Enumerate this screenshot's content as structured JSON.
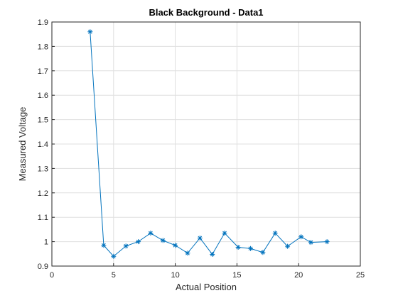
{
  "chart_data": {
    "type": "line",
    "title": "Black Background - Data1",
    "xlabel": "Actual Position",
    "ylabel": "Measured Voltage",
    "xlim": [
      0,
      25
    ],
    "ylim": [
      0.9,
      1.9
    ],
    "xticks": [
      0,
      5,
      10,
      15,
      20,
      25
    ],
    "yticks": [
      0.9,
      1.0,
      1.1,
      1.2,
      1.3,
      1.4,
      1.5,
      1.6,
      1.7,
      1.8,
      1.9
    ],
    "xtick_labels": [
      "0",
      "5",
      "10",
      "15",
      "20",
      "25"
    ],
    "ytick_labels": [
      "0.9",
      "1",
      "1.1",
      "1.2",
      "1.3",
      "1.4",
      "1.5",
      "1.6",
      "1.7",
      "1.8",
      "1.9"
    ],
    "grid": true,
    "marker": "asterisk",
    "series": [
      {
        "color": "#0072BD",
        "x": [
          3.1,
          4.2,
          5.0,
          6.0,
          7.0,
          8.0,
          9.0,
          10.0,
          11.0,
          12.0,
          13.0,
          14.0,
          15.1,
          16.1,
          17.1,
          18.1,
          19.1,
          20.2,
          21.0,
          22.3
        ],
        "y": [
          1.86,
          0.985,
          0.94,
          0.982,
          1.0,
          1.035,
          1.005,
          0.985,
          0.953,
          1.015,
          0.948,
          1.035,
          0.977,
          0.972,
          0.956,
          1.035,
          0.981,
          1.02,
          0.997,
          1.0
        ]
      }
    ]
  }
}
